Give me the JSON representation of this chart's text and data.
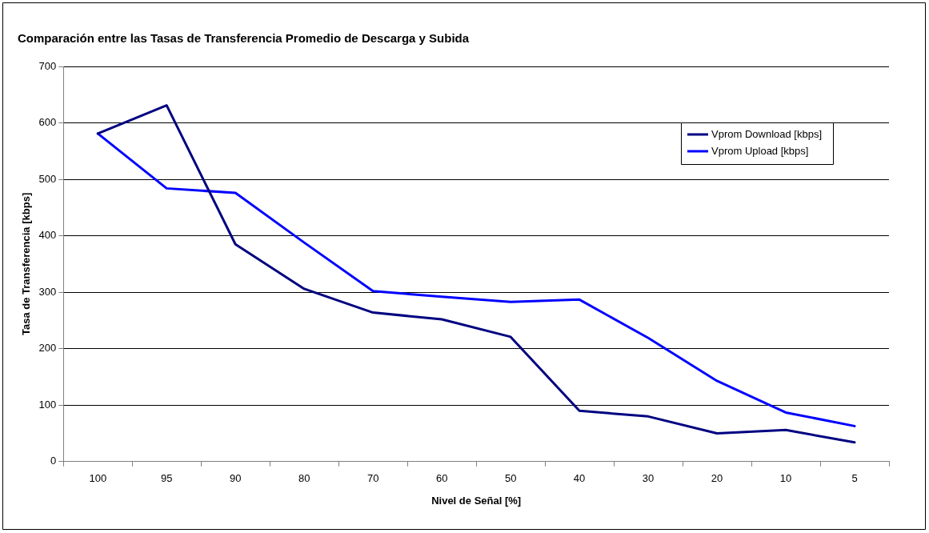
{
  "chart_data": {
    "type": "line",
    "title": "Comparación entre las Tasas de Transferencia Promedio de Descarga y Subida",
    "xlabel": "Nivel de Señal [%]",
    "ylabel": "Tasa de Transferencia [kbps]",
    "categories": [
      "100",
      "95",
      "90",
      "80",
      "70",
      "60",
      "50",
      "40",
      "30",
      "20",
      "10",
      "5"
    ],
    "series": [
      {
        "name": "Vprom Download [kbps]",
        "color": "#000080",
        "values": [
          581,
          631,
          385,
          306,
          264,
          252,
          221,
          90,
          80,
          50,
          56,
          34
        ]
      },
      {
        "name": "Vprom Upload [kbps]",
        "color": "#0000ff",
        "values": [
          581,
          484,
          476,
          388,
          302,
          292,
          283,
          287,
          219,
          143,
          87,
          63
        ]
      }
    ],
    "ylim": [
      0,
      700
    ],
    "yticks": [
      0,
      100,
      200,
      300,
      400,
      500,
      600,
      700
    ],
    "grid": "y",
    "legend": "top right",
    "marker": "none",
    "line_style": "solid"
  }
}
